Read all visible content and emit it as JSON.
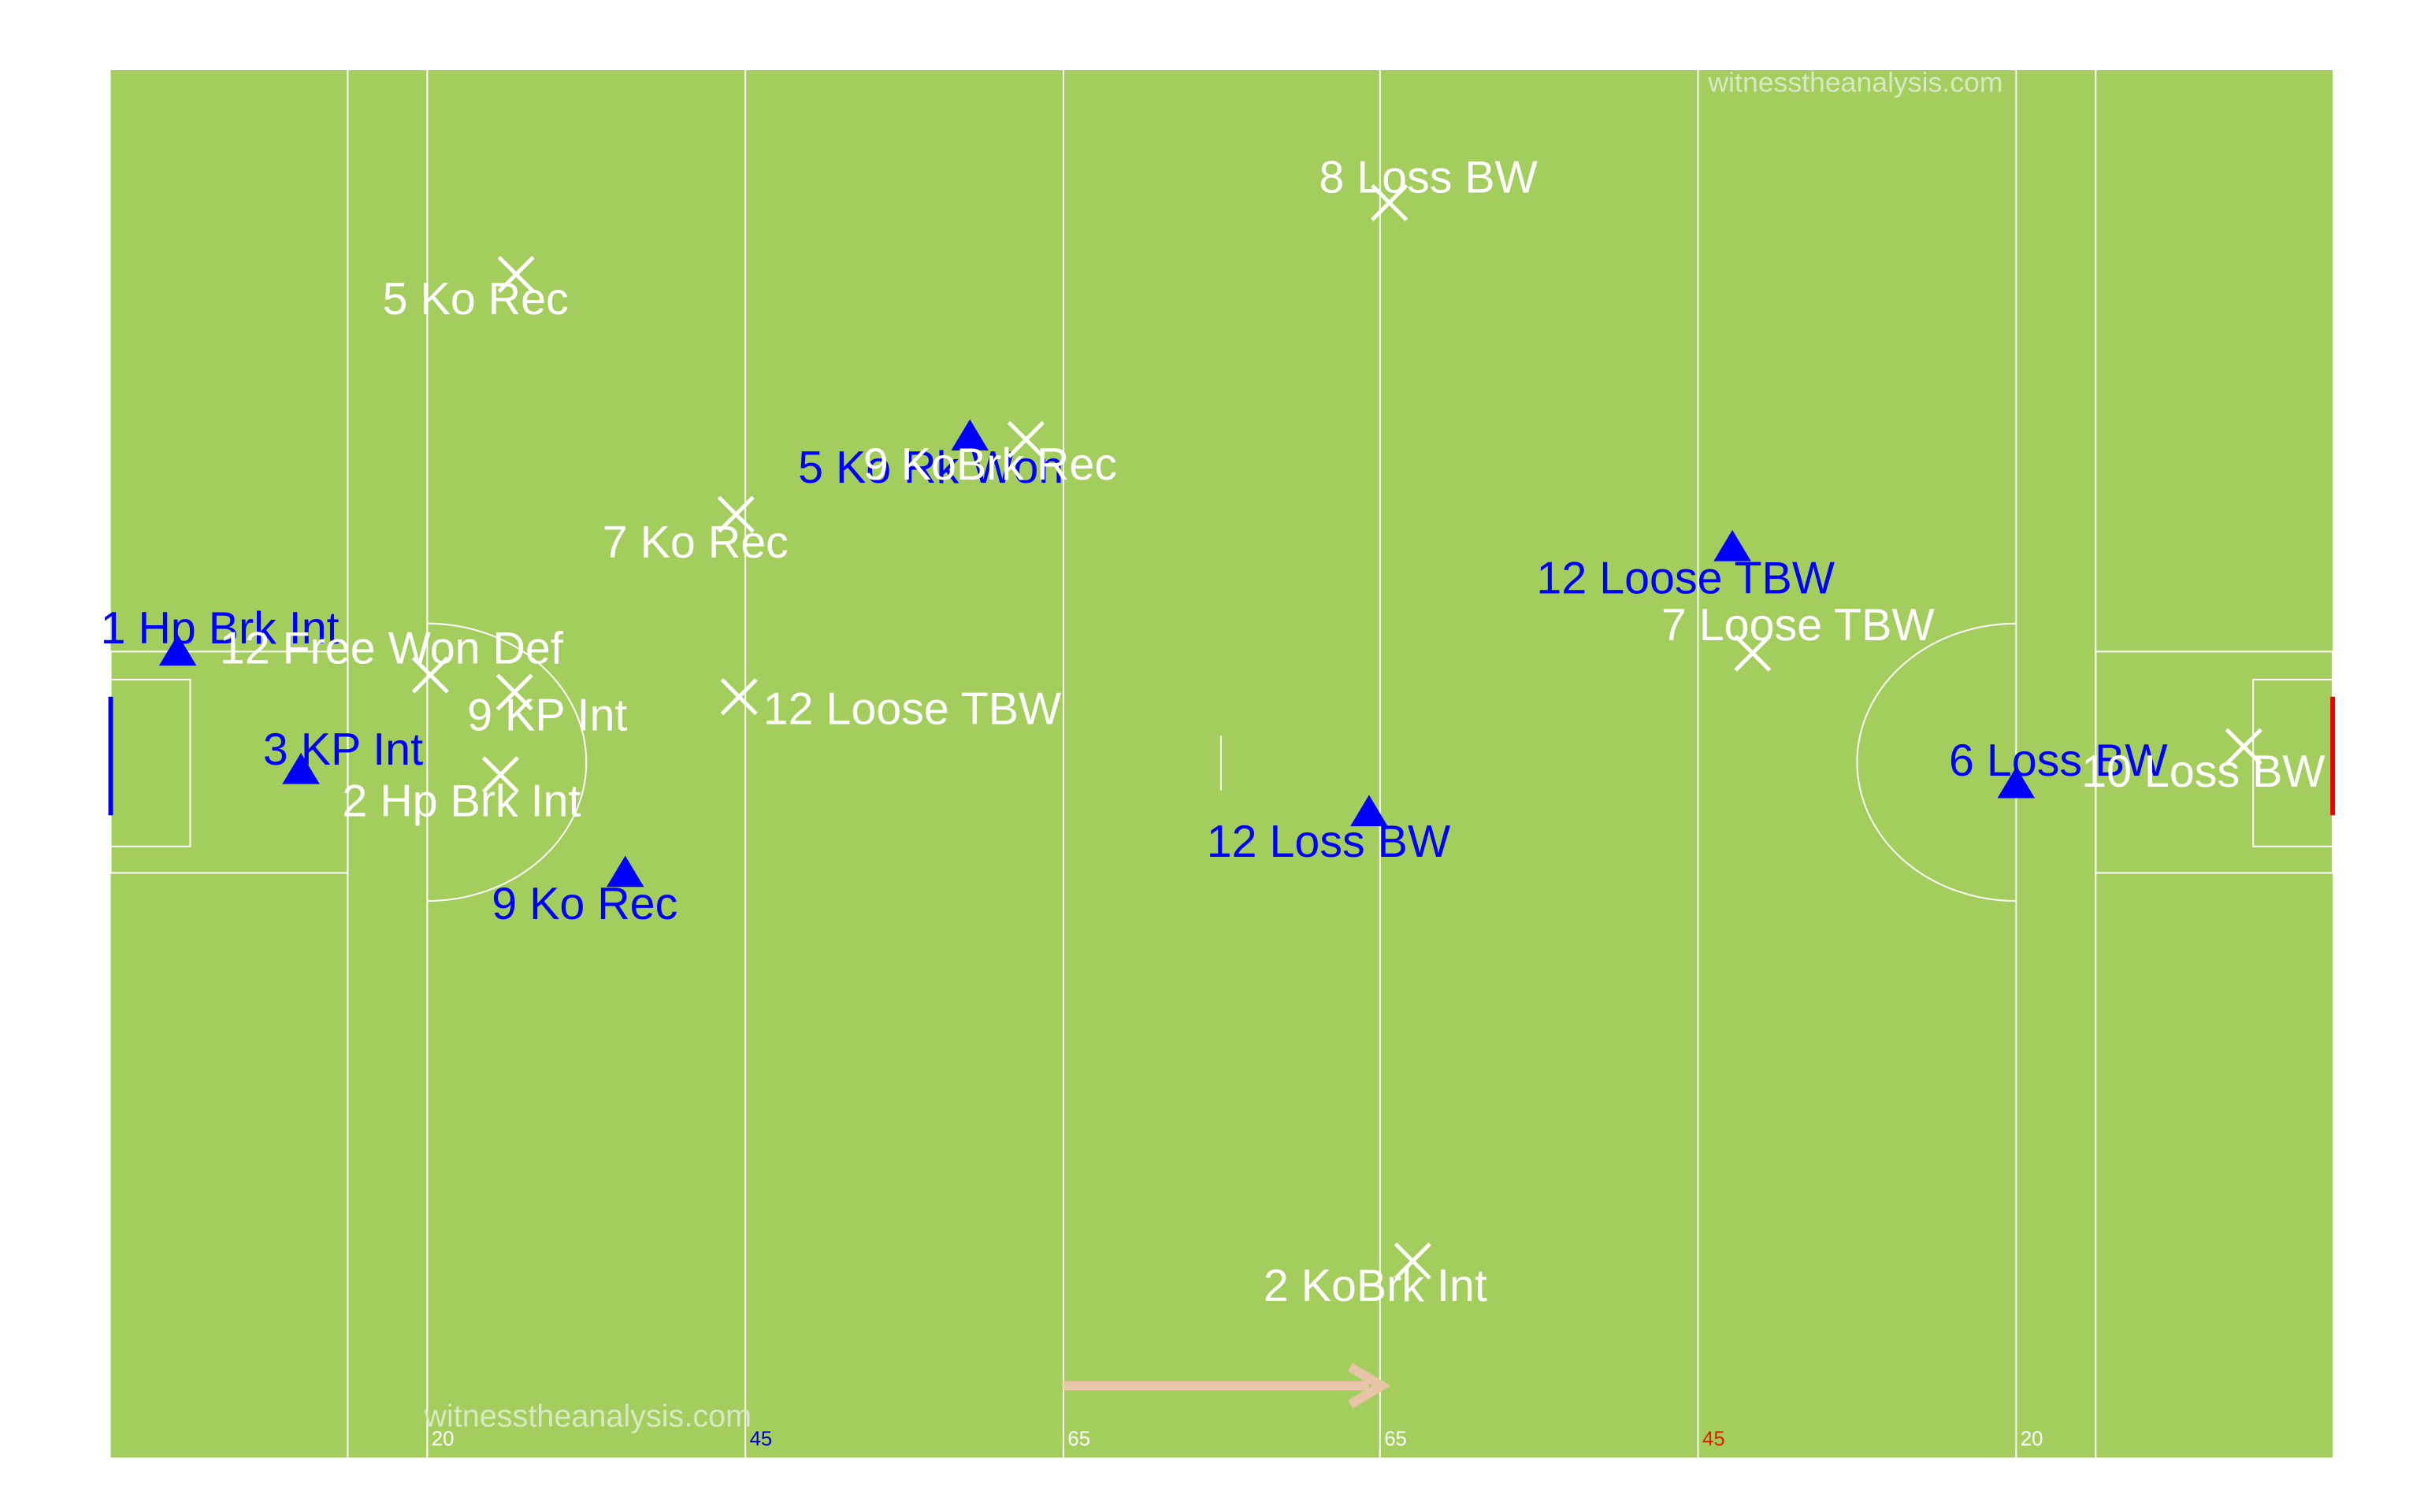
{
  "chart_data": {
    "type": "scatter",
    "annotations": [
      "witnesstheanalysis.com",
      "witnesstheanalysis.com"
    ],
    "xlim": [
      0,
      1425
    ],
    "ylim": [
      0,
      890
    ],
    "xticks": [
      {
        "value": 203,
        "label": "20"
      },
      {
        "value": 407,
        "label": "45"
      },
      {
        "value": 611,
        "label": "65"
      },
      {
        "value": 814,
        "label": "65"
      },
      {
        "value": 1018,
        "label": "45"
      },
      {
        "value": 1222,
        "label": "20"
      }
    ],
    "xtick_colors": [
      "#ffffff",
      "#0000cc",
      "#ffffff",
      "#ffffff",
      "#dd2200",
      "#ffffff"
    ],
    "series": [
      {
        "color": "#0000ff",
        "marker": "triangle",
        "x": [
          43,
          122,
          330,
          551,
          807,
          1040,
          1222
        ],
        "y": [
          517,
          441,
          375,
          655,
          414,
          584,
          432
        ],
        "labels": [
          "1 Hp Brk Int",
          "3 KP Int",
          "9 Ko Rec",
          "5 Ko Rk Won",
          "12 Loss BW",
          "12 Loose TBW",
          "6 Loss BW"
        ]
      },
      {
        "color": "#ffffff",
        "marker": "cross",
        "x": [
          260,
          820,
          587,
          401,
          205,
          259,
          403,
          250,
          1053,
          1368,
          835
        ],
        "y": [
          759,
          805,
          653,
          605,
          502,
          491,
          488,
          438,
          516,
          456,
          126
        ],
        "labels": [
          "5 Ko Rec",
          "8 Loss BW",
          "9 KoBrk Rec",
          "7 Ko Rec",
          "12 Free Won Def",
          "9 KP Int",
          "12 Loose TBW",
          "2 Hp Brk Int",
          "7 Loose TBW",
          "10 Loss BW",
          "2 KoBrk Int"
        ]
      }
    ]
  }
}
